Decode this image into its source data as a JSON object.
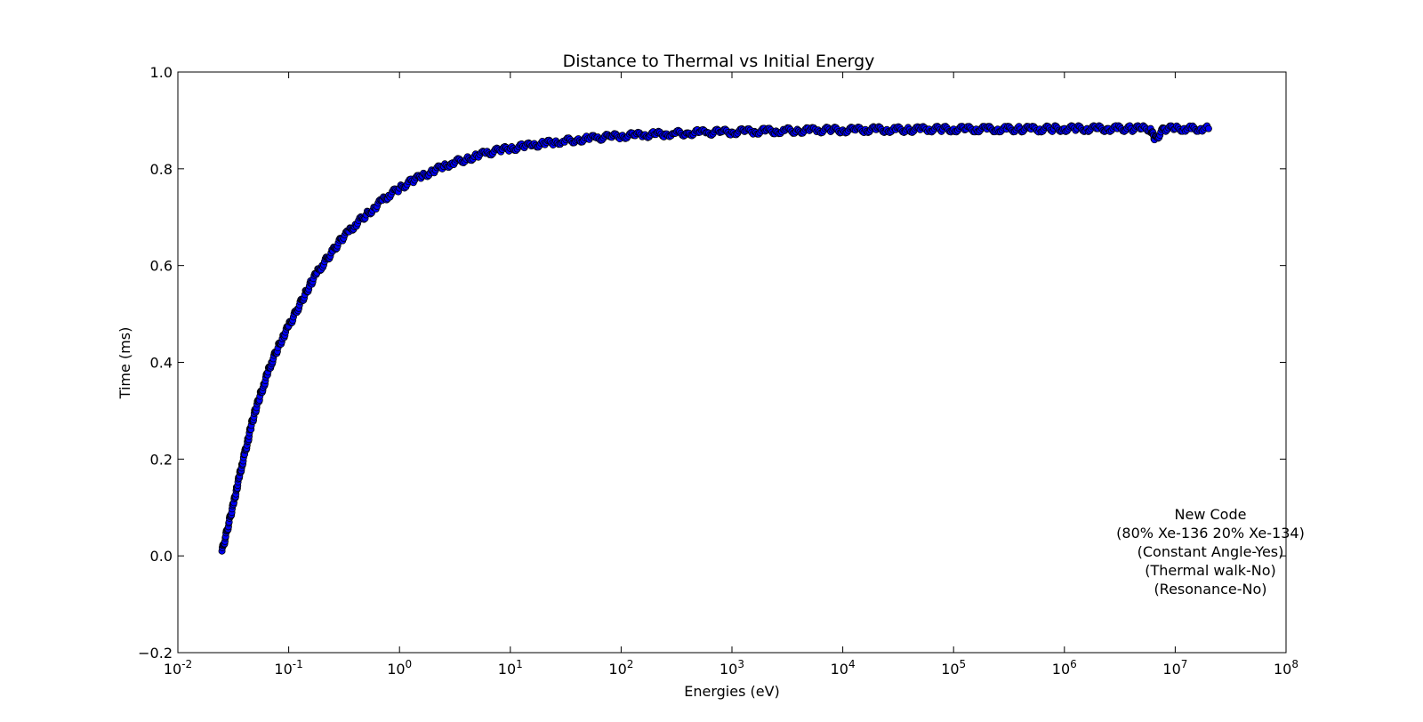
{
  "chart_data": {
    "type": "scatter",
    "title": "Distance to Thermal vs Initial Energy",
    "xlabel": "Energies (eV)",
    "ylabel": "Time (ms)",
    "x_scale": "log",
    "xlim": [
      0.01,
      100000000
    ],
    "ylim": [
      -0.2,
      1.0
    ],
    "x_ticks": [
      {
        "base": "10",
        "exp": "-2"
      },
      {
        "base": "10",
        "exp": "-1"
      },
      {
        "base": "10",
        "exp": "0"
      },
      {
        "base": "10",
        "exp": "1"
      },
      {
        "base": "10",
        "exp": "2"
      },
      {
        "base": "10",
        "exp": "3"
      },
      {
        "base": "10",
        "exp": "4"
      },
      {
        "base": "10",
        "exp": "5"
      },
      {
        "base": "10",
        "exp": "6"
      },
      {
        "base": "10",
        "exp": "7"
      },
      {
        "base": "10",
        "exp": "8"
      }
    ],
    "y_ticks": [
      "−0.2",
      "0.0",
      "0.2",
      "0.4",
      "0.6",
      "0.8",
      "1.0"
    ],
    "grid": false,
    "marker_color": "#0000ff",
    "marker_edge_color": "#000000",
    "series": [
      {
        "x": [
          0.025,
          0.026,
          0.027,
          0.028,
          0.029,
          0.03,
          0.032,
          0.034,
          0.036,
          0.038,
          0.04,
          0.043,
          0.046,
          0.05,
          0.055,
          0.06,
          0.065,
          0.07,
          0.08,
          0.09,
          0.1,
          0.12,
          0.14,
          0.16,
          0.18,
          0.2,
          0.25,
          0.3,
          0.35,
          0.4,
          0.5,
          0.6,
          0.7,
          0.8,
          1,
          1.3,
          1.6,
          2,
          2.5,
          3,
          4,
          5,
          6,
          8,
          10,
          13,
          16,
          20,
          25,
          30,
          40,
          50,
          60,
          80,
          100,
          130,
          160,
          200,
          250,
          300,
          400,
          500,
          600,
          800,
          1000,
          1300,
          1600,
          2000,
          2500,
          3000,
          4000,
          5000,
          6000,
          8000,
          10000,
          13000,
          16000,
          20000,
          25000,
          30000,
          40000,
          50000,
          60000,
          80000,
          100000,
          130000,
          160000,
          200000,
          250000,
          300000,
          400000,
          500000,
          600000,
          800000,
          1000000,
          1300000,
          1600000,
          2000000,
          2500000,
          3000000,
          4000000,
          5000000,
          6000000,
          6500000,
          8000000,
          10000000,
          12000000,
          14000000,
          17000000,
          20000000
        ],
        "y": [
          0.01,
          0.025,
          0.04,
          0.055,
          0.07,
          0.085,
          0.11,
          0.14,
          0.165,
          0.19,
          0.21,
          0.24,
          0.27,
          0.3,
          0.33,
          0.355,
          0.38,
          0.4,
          0.43,
          0.455,
          0.475,
          0.51,
          0.54,
          0.565,
          0.585,
          0.6,
          0.63,
          0.655,
          0.67,
          0.685,
          0.705,
          0.72,
          0.735,
          0.745,
          0.76,
          0.775,
          0.785,
          0.795,
          0.805,
          0.812,
          0.82,
          0.827,
          0.832,
          0.838,
          0.842,
          0.846,
          0.849,
          0.852,
          0.855,
          0.857,
          0.86,
          0.862,
          0.864,
          0.866,
          0.868,
          0.869,
          0.87,
          0.871,
          0.872,
          0.873,
          0.874,
          0.875,
          0.875,
          0.876,
          0.876,
          0.877,
          0.877,
          0.878,
          0.878,
          0.879,
          0.879,
          0.879,
          0.88,
          0.88,
          0.88,
          0.88,
          0.881,
          0.881,
          0.881,
          0.881,
          0.881,
          0.881,
          0.882,
          0.882,
          0.882,
          0.882,
          0.882,
          0.882,
          0.882,
          0.882,
          0.882,
          0.882,
          0.882,
          0.883,
          0.883,
          0.883,
          0.883,
          0.883,
          0.883,
          0.883,
          0.883,
          0.883,
          0.883,
          0.86,
          0.883,
          0.883,
          0.883,
          0.883,
          0.883,
          0.883
        ]
      }
    ],
    "annotation": [
      "New Code",
      "(80% Xe-136 20% Xe-134)",
      "(Constant Angle-Yes)",
      "(Thermal walk-No)",
      "(Resonance-No)"
    ]
  }
}
